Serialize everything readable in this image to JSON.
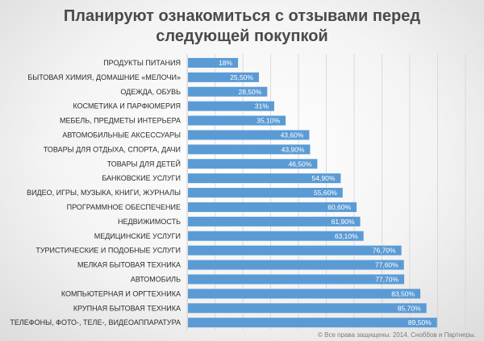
{
  "title_line1": "Планируют ознакомиться с отзывами перед",
  "title_line2": "следующей покупкой",
  "footer": "© Все права защищены. 2014. Сноббов и Партнеры.",
  "colors": {
    "bar": "#5b9bd5",
    "grid": "#d4d4d4"
  },
  "chart_data": {
    "type": "bar",
    "orientation": "horizontal",
    "title": "Планируют ознакомиться с отзывами перед следующей покупкой",
    "categories": [
      "ПРОДУКТЫ ПИТАНИЯ",
      "БЫТОВАЯ ХИМИЯ, ДОМАШНИЕ «МЕЛОЧИ»",
      "ОДЕЖДА, ОБУВЬ",
      "КОСМЕТИКА И ПАРФЮМЕРИЯ",
      "МЕБЕЛЬ, ПРЕДМЕТЫ ИНТЕРЬЕРА",
      "АВТОМОБИЛЬНЫЕ АКСЕССУАРЫ",
      "ТОВАРЫ ДЛЯ ОТДЫХА, СПОРТА, ДАЧИ",
      "ТОВАРЫ ДЛЯ ДЕТЕЙ",
      "БАНКОВСКИЕ УСЛУГИ",
      "ВИДЕО, ИГРЫ, МУЗЫКА, КНИГИ, ЖУРНАЛЫ",
      "ПРОГРАММНОЕ ОБЕСПЕЧЕНИЕ",
      "НЕДВИЖИМОСТЬ",
      "МЕДИЦИНСКИЕ УСЛУГИ",
      "ТУРИСТИЧЕСКИЕ И ПОДОБНЫЕ УСЛУГИ",
      "МЕЛКАЯ БЫТОВАЯ ТЕХНИКА",
      "АВТОМОБИЛЬ",
      "КОМПЬЮТЕРНАЯ И ОРГТЕХНИКА",
      "КРУПНАЯ БЫТОВАЯ ТЕХНИКА",
      "ТЕЛЕФОНЫ, ФОТО-, ТЕЛЕ-, ВИДЕОАППАРАТУРА"
    ],
    "values": [
      18,
      25.5,
      28.5,
      31,
      35.1,
      43.6,
      43.9,
      46.5,
      54.9,
      55.6,
      60.6,
      61.9,
      63.1,
      76.7,
      77.6,
      77.7,
      83.5,
      85.7,
      89.5
    ],
    "value_labels": [
      "18%",
      "25,50%",
      "28,50%",
      "31%",
      "35,10%",
      "43,60%",
      "43,90%",
      "46,50%",
      "54,90%",
      "55,60%",
      "60,60%",
      "61,90%",
      "63,10%",
      "76,70%",
      "77,60%",
      "77,70%",
      "83,50%",
      "85,70%",
      "89,50%"
    ],
    "xlim": [
      0,
      100
    ],
    "grid": true,
    "legend": "none"
  }
}
